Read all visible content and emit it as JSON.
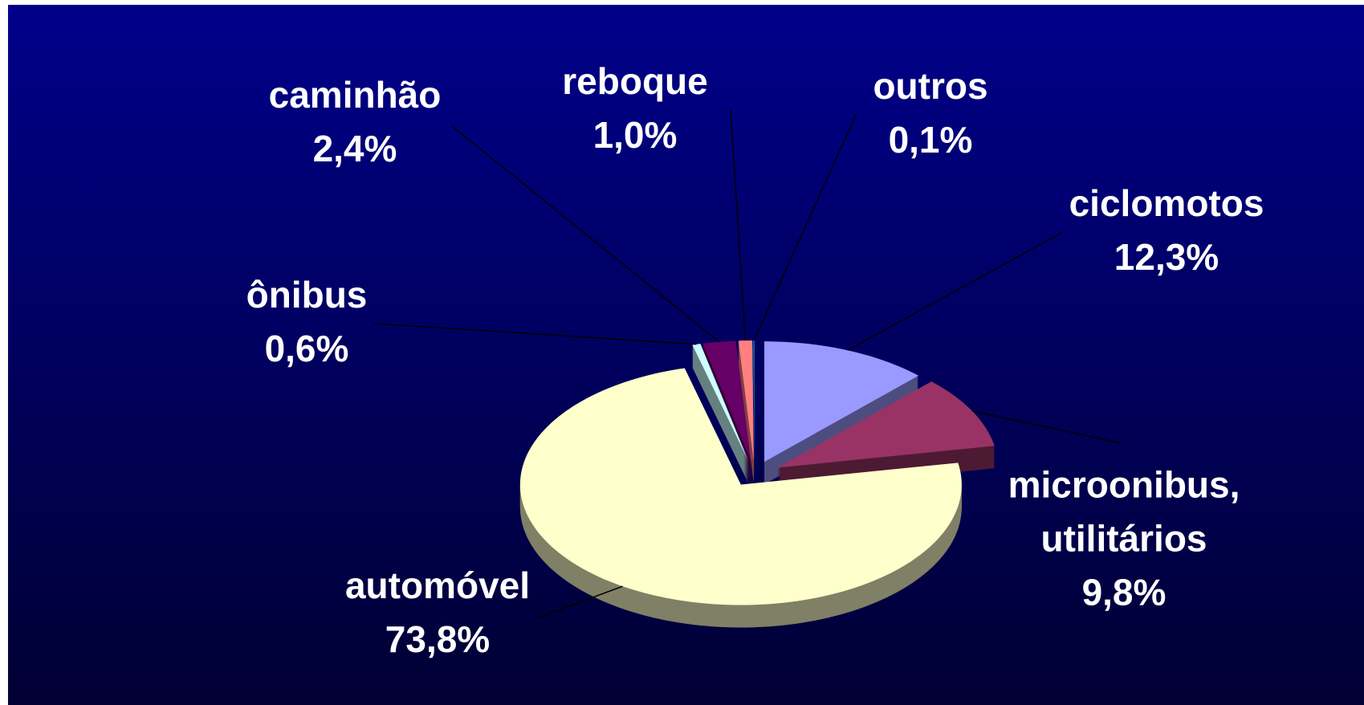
{
  "chart_data": {
    "type": "pie",
    "categories": [
      "ciclomotos",
      "microonibus, utilitários",
      "automóvel",
      "ônibus",
      "caminhão",
      "reboque",
      "outros"
    ],
    "values": [
      12.3,
      9.8,
      73.8,
      0.6,
      2.4,
      1.0,
      0.1
    ],
    "value_labels": [
      "12,3%",
      "9,8%",
      "73,8%",
      "0,6%",
      "2,4%",
      "1,0%",
      "0,1%"
    ],
    "colors": [
      "#9999ff",
      "#993366",
      "#ffffcc",
      "#ccffff",
      "#660066",
      "#ff8080",
      "#0066cc"
    ]
  }
}
